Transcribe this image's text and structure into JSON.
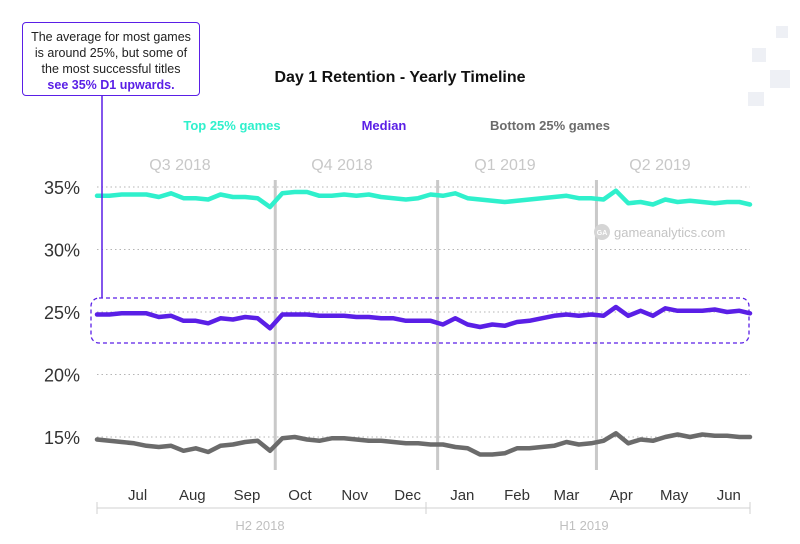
{
  "callout": {
    "line1": "The average for most games",
    "line2": "is around 25%, but some of",
    "line3": "the most successful titles",
    "highlight": "see 35% D1 upwards."
  },
  "watermark": "gameanalytics.com",
  "watermark_logo": "GA",
  "colors": {
    "top": "#2ff0cc",
    "median": "#5a1fe6",
    "bottom": "#6b6b6b",
    "grid": "#b5b5b5",
    "quarter_label": "#c8c8c8",
    "divider": "#c9c9c9"
  },
  "chart_data": {
    "type": "line",
    "title": "Day 1 Retention - Yearly Timeline",
    "ylim": [
      13.2,
      36.4
    ],
    "yticks": [
      15,
      20,
      25,
      30,
      35
    ],
    "ytick_labels": [
      "15%",
      "20%",
      "25%",
      "30%",
      "35%"
    ],
    "x": [
      "2018-06-22",
      "2018-06-29",
      "2018-07-06",
      "2018-07-13",
      "2018-07-20",
      "2018-07-27",
      "2018-08-03",
      "2018-08-10",
      "2018-08-17",
      "2018-08-24",
      "2018-08-31",
      "2018-09-07",
      "2018-09-14",
      "2018-09-21",
      "2018-09-28",
      "2018-10-05",
      "2018-10-12",
      "2018-10-19",
      "2018-10-26",
      "2018-11-02",
      "2018-11-09",
      "2018-11-16",
      "2018-11-23",
      "2018-11-30",
      "2018-12-07",
      "2018-12-14",
      "2018-12-21",
      "2018-12-28",
      "2019-01-04",
      "2019-01-11",
      "2019-01-18",
      "2019-01-25",
      "2019-02-01",
      "2019-02-08",
      "2019-02-15",
      "2019-02-22",
      "2019-03-01",
      "2019-03-08",
      "2019-03-15",
      "2019-03-22",
      "2019-03-29",
      "2019-04-05",
      "2019-04-12",
      "2019-04-19",
      "2019-04-26",
      "2019-05-03",
      "2019-05-10",
      "2019-05-17",
      "2019-05-24",
      "2019-05-31",
      "2019-06-07",
      "2019-06-14",
      "2019-06-21",
      "2019-06-27"
    ],
    "series": [
      {
        "name": "Top 25% games",
        "values": [
          34.3,
          34.3,
          34.4,
          34.4,
          34.4,
          34.2,
          34.5,
          34.1,
          34.1,
          34.0,
          34.4,
          34.2,
          34.2,
          34.1,
          33.4,
          34.5,
          34.6,
          34.6,
          34.3,
          34.3,
          34.4,
          34.3,
          34.4,
          34.2,
          34.1,
          34.0,
          34.1,
          34.4,
          34.3,
          34.5,
          34.1,
          34.0,
          33.9,
          33.8,
          33.9,
          34.0,
          34.1,
          34.2,
          34.3,
          34.1,
          34.1,
          34.0,
          34.7,
          33.7,
          33.8,
          33.6,
          34.0,
          33.8,
          33.9,
          33.8,
          33.7,
          33.8,
          33.8,
          33.6
        ]
      },
      {
        "name": "Median",
        "values": [
          24.8,
          24.8,
          24.9,
          24.9,
          24.9,
          24.6,
          24.7,
          24.3,
          24.3,
          24.1,
          24.5,
          24.4,
          24.6,
          24.5,
          23.7,
          24.8,
          24.8,
          24.8,
          24.7,
          24.7,
          24.7,
          24.6,
          24.6,
          24.5,
          24.5,
          24.3,
          24.3,
          24.3,
          24.0,
          24.5,
          24.0,
          23.8,
          24.0,
          23.9,
          24.2,
          24.3,
          24.5,
          24.7,
          24.8,
          24.7,
          24.8,
          24.7,
          25.4,
          24.7,
          25.1,
          24.7,
          25.3,
          25.1,
          25.1,
          25.1,
          25.2,
          25.0,
          25.1,
          24.9
        ]
      },
      {
        "name": "Bottom 25% games",
        "values": [
          14.8,
          14.7,
          14.6,
          14.5,
          14.3,
          14.2,
          14.3,
          13.9,
          14.1,
          13.8,
          14.3,
          14.4,
          14.6,
          14.7,
          13.9,
          14.9,
          15.0,
          14.8,
          14.7,
          14.9,
          14.9,
          14.8,
          14.7,
          14.7,
          14.6,
          14.5,
          14.5,
          14.4,
          14.4,
          14.2,
          14.1,
          13.6,
          13.6,
          13.7,
          14.1,
          14.1,
          14.2,
          14.3,
          14.6,
          14.4,
          14.5,
          14.7,
          15.3,
          14.5,
          14.8,
          14.7,
          15.0,
          15.2,
          15.0,
          15.2,
          15.1,
          15.1,
          15.0,
          15.0
        ]
      }
    ],
    "months": [
      "Jul",
      "Aug",
      "Sep",
      "Oct",
      "Nov",
      "Dec",
      "Jan",
      "Feb",
      "Mar",
      "Apr",
      "May",
      "Jun"
    ],
    "quarters": [
      "Q3 2018",
      "Q4 2018",
      "Q1 2019",
      "Q2 2019"
    ],
    "halves": [
      "H2 2018",
      "H1 2019"
    ],
    "legend": [
      "Top 25% games",
      "Median",
      "Bottom 25% games"
    ],
    "legend_position": "top",
    "grid": true
  }
}
